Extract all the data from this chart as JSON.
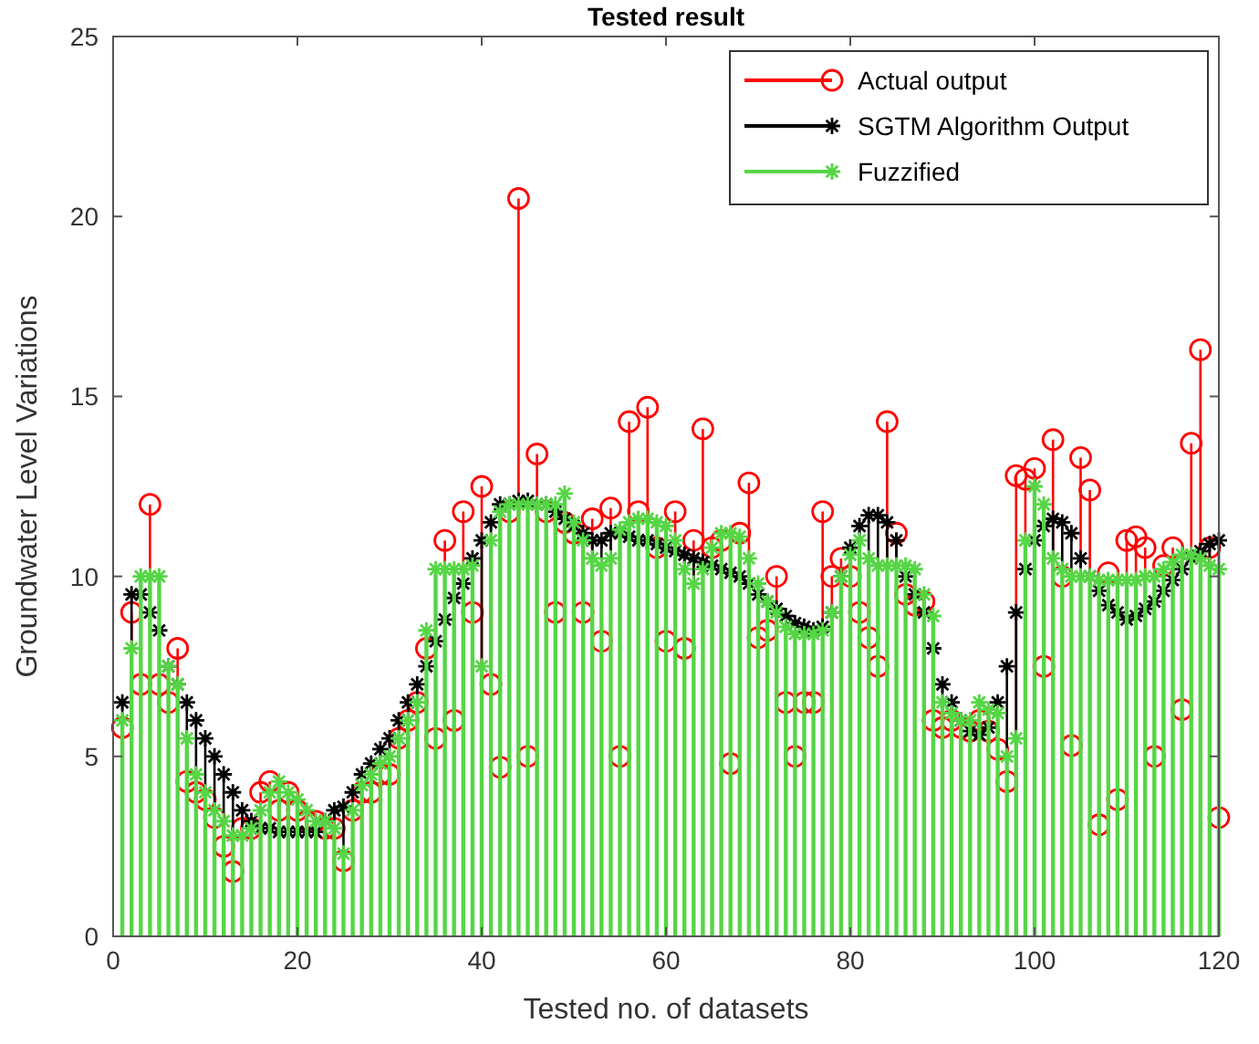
{
  "chart_data": {
    "type": "lollipop",
    "title": "Tested result",
    "xlabel": "Tested no. of datasets",
    "ylabel": "Groundwater Level Variations",
    "x": [
      1,
      2,
      3,
      4,
      5,
      6,
      7,
      8,
      9,
      10,
      11,
      12,
      13,
      14,
      15,
      16,
      17,
      18,
      19,
      20,
      21,
      22,
      23,
      24,
      25,
      26,
      27,
      28,
      29,
      30,
      31,
      32,
      33,
      34,
      35,
      36,
      37,
      38,
      39,
      40,
      41,
      42,
      43,
      44,
      45,
      46,
      47,
      48,
      49,
      50,
      51,
      52,
      53,
      54,
      55,
      56,
      57,
      58,
      59,
      60,
      61,
      62,
      63,
      64,
      65,
      66,
      67,
      68,
      69,
      70,
      71,
      72,
      73,
      74,
      75,
      76,
      77,
      78,
      79,
      80,
      81,
      82,
      83,
      84,
      85,
      86,
      87,
      88,
      89,
      90,
      91,
      92,
      93,
      94,
      95,
      96,
      97,
      98,
      99,
      100,
      101,
      102,
      103,
      104,
      105,
      106,
      107,
      108,
      109,
      110,
      111,
      112,
      113,
      114,
      115,
      116,
      117,
      118,
      119,
      120
    ],
    "xlim": [
      0,
      120
    ],
    "xticks": [
      0,
      20,
      40,
      60,
      80,
      100,
      120
    ],
    "ylim": [
      0,
      25
    ],
    "yticks": [
      0,
      5,
      10,
      15,
      20,
      25
    ],
    "grid": false,
    "legend": "top right",
    "series": [
      {
        "name": "Actual output",
        "color": "#ff0000",
        "marker": "circle",
        "values": [
          5.8,
          9,
          7,
          12,
          7,
          6.5,
          8,
          4.3,
          4,
          3.8,
          3.3,
          2.5,
          1.8,
          3,
          3,
          4,
          4.3,
          3.5,
          4,
          3.5,
          3.2,
          3.2,
          3,
          3,
          2.1,
          3.5,
          4,
          4,
          4.5,
          4.5,
          5.5,
          6,
          6.5,
          8,
          5.5,
          11,
          6,
          11.8,
          9,
          12.5,
          7,
          4.7,
          11.8,
          20.5,
          5,
          13.4,
          11.8,
          9,
          11.5,
          11.2,
          9,
          11.6,
          8.2,
          11.9,
          5,
          14.3,
          11.8,
          14.7,
          10.8,
          8.2,
          11.8,
          8,
          11,
          14.1,
          10.8,
          11,
          4.8,
          11.2,
          12.6,
          8.3,
          8.5,
          10,
          6.5,
          5,
          6.5,
          6.5,
          11.8,
          10,
          10.5,
          10,
          9,
          8.3,
          7.5,
          14.3,
          11.2,
          9.5,
          9.2,
          9.3,
          6,
          5.8,
          6,
          5.8,
          5.7,
          6,
          5.7,
          5.2,
          4.3,
          12.8,
          12.7,
          13,
          7.5,
          13.8,
          10,
          5.3,
          13.3,
          12.4,
          3.1,
          10.1,
          3.8,
          11,
          11.1,
          10.8,
          5,
          10.3,
          10.8,
          6.3,
          13.7,
          16.3,
          10.8,
          3.3
        ]
      },
      {
        "name": "SGTM Algorithm Output",
        "color": "#000000",
        "marker": "cross",
        "values": [
          6.5,
          9.5,
          9.5,
          9,
          8.5,
          7.5,
          7,
          6.5,
          6,
          5.5,
          5,
          4.5,
          4,
          3.5,
          3.2,
          3,
          3,
          2.9,
          2.9,
          2.9,
          2.9,
          2.9,
          3.2,
          3.5,
          3.6,
          4,
          4.5,
          4.8,
          5.2,
          5.5,
          6,
          6.5,
          7,
          7.5,
          8.2,
          8.8,
          9.4,
          9.8,
          10.5,
          11,
          11.5,
          12,
          12,
          12.1,
          12.1,
          12,
          12,
          11.8,
          11.6,
          11.4,
          11.2,
          11,
          11,
          11.2,
          11.2,
          11.1,
          11,
          11,
          10.9,
          10.8,
          10.7,
          10.6,
          10.5,
          10.4,
          10.3,
          10.2,
          10.1,
          10,
          9.8,
          9.5,
          9.3,
          9.1,
          8.9,
          8.7,
          8.6,
          8.5,
          8.6,
          9,
          10,
          10.8,
          11.4,
          11.7,
          11.7,
          11.5,
          11,
          10,
          9.5,
          9,
          8,
          7,
          6.5,
          6,
          5.7,
          5.6,
          5.8,
          6.5,
          7.5,
          9,
          10.2,
          11,
          11.4,
          11.6,
          11.5,
          11.2,
          10.5,
          10,
          9.6,
          9.2,
          9,
          8.8,
          8.9,
          9.1,
          9.3,
          9.6,
          9.9,
          10.2,
          10.5,
          10.7,
          10.9,
          11
        ]
      },
      {
        "name": "Fuzzified",
        "color": "#55d645",
        "marker": "cross",
        "values": [
          6,
          8,
          10,
          10,
          10,
          7.5,
          7,
          5.5,
          4.5,
          4,
          3.5,
          3.2,
          2.8,
          2.8,
          3,
          3.5,
          4,
          4.3,
          4,
          3.8,
          3.5,
          3.2,
          3.2,
          3,
          2.3,
          3.5,
          4.2,
          4.5,
          4.8,
          5,
          5.5,
          6,
          6.5,
          8.5,
          10.2,
          10.2,
          10.2,
          10.2,
          10.3,
          7.5,
          11,
          11.8,
          12,
          12,
          12,
          12,
          12,
          12,
          12.3,
          11.5,
          11,
          10.5,
          10.3,
          10.5,
          11.3,
          11.5,
          11.6,
          11.6,
          11.5,
          11.4,
          11,
          10.2,
          9.8,
          10.2,
          10.8,
          11.2,
          11.2,
          11.1,
          10.5,
          9.8,
          9.3,
          9,
          8.6,
          8.4,
          8.4,
          8.4,
          8.5,
          9,
          10,
          10.6,
          11,
          10.5,
          10.3,
          10.3,
          10.3,
          10.3,
          10.2,
          9.5,
          8.9,
          6.5,
          6.2,
          6,
          6,
          6.5,
          6.3,
          6.2,
          5,
          5.5,
          11,
          12.5,
          12,
          10.5,
          10.2,
          10,
          10,
          10,
          9.9,
          9.9,
          9.9,
          9.9,
          9.9,
          10,
          10,
          10.2,
          10.4,
          10.6,
          10.6,
          10.5,
          10.3,
          10.2
        ]
      }
    ]
  }
}
